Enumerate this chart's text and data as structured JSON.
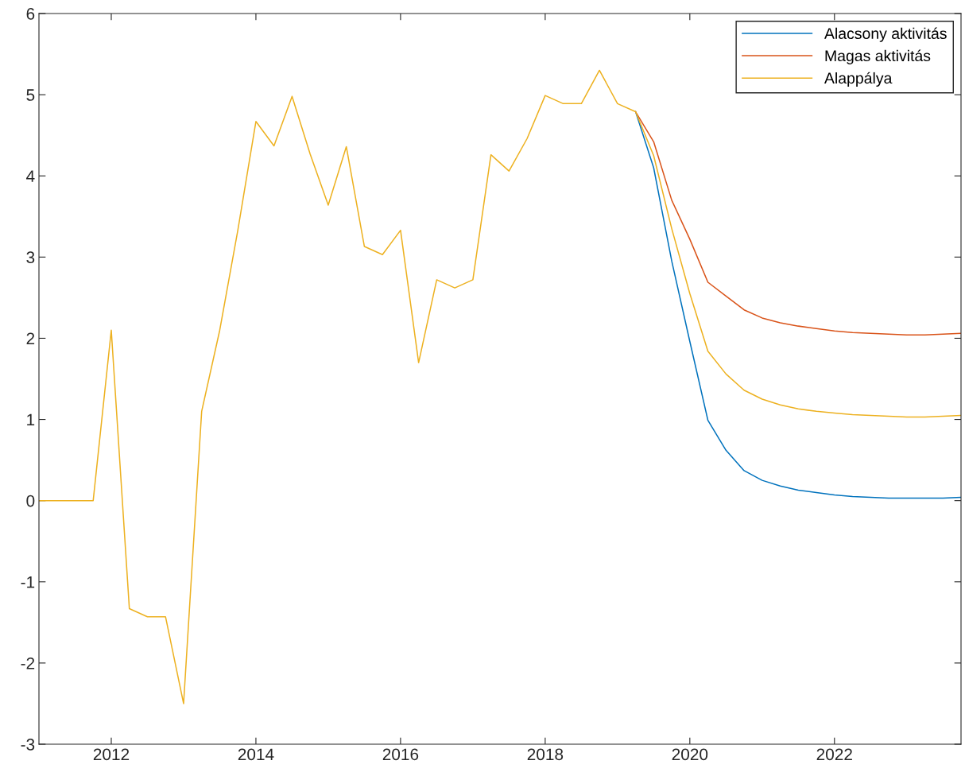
{
  "chart_data": {
    "type": "line",
    "x": [
      2011.0,
      2011.25,
      2011.5,
      2011.75,
      2012.0,
      2012.25,
      2012.5,
      2012.75,
      2013.0,
      2013.25,
      2013.5,
      2013.75,
      2014.0,
      2014.25,
      2014.5,
      2014.75,
      2015.0,
      2015.25,
      2015.5,
      2015.75,
      2016.0,
      2016.25,
      2016.5,
      2016.75,
      2017.0,
      2017.25,
      2017.5,
      2017.75,
      2018.0,
      2018.25,
      2018.5,
      2018.75,
      2019.0,
      2019.25,
      2019.5,
      2019.75,
      2020.0,
      2020.25,
      2020.5,
      2020.75,
      2021.0,
      2021.25,
      2021.5,
      2021.75,
      2022.0,
      2022.25,
      2022.5,
      2022.75,
      2023.0,
      2023.25,
      2023.5,
      2023.75
    ],
    "series": [
      {
        "name": "Alacsony aktivitás",
        "color": "#0072bd",
        "values": [
          null,
          null,
          null,
          null,
          null,
          null,
          null,
          null,
          null,
          null,
          null,
          null,
          null,
          null,
          null,
          null,
          null,
          null,
          null,
          null,
          null,
          null,
          null,
          null,
          null,
          null,
          null,
          null,
          null,
          null,
          null,
          null,
          null,
          4.79,
          4.1,
          2.95,
          1.96,
          0.99,
          0.62,
          0.37,
          0.25,
          0.18,
          0.13,
          0.1,
          0.07,
          0.05,
          0.04,
          0.03,
          0.03,
          0.03,
          0.03,
          0.04
        ]
      },
      {
        "name": "Magas aktivitás",
        "color": "#d95319",
        "values": [
          null,
          null,
          null,
          null,
          null,
          null,
          null,
          null,
          null,
          null,
          null,
          null,
          null,
          null,
          null,
          null,
          null,
          null,
          null,
          null,
          null,
          null,
          null,
          null,
          null,
          null,
          null,
          null,
          null,
          null,
          null,
          null,
          null,
          4.79,
          4.42,
          3.7,
          3.22,
          2.69,
          2.52,
          2.35,
          2.25,
          2.19,
          2.15,
          2.12,
          2.09,
          2.07,
          2.06,
          2.05,
          2.04,
          2.04,
          2.05,
          2.06
        ]
      },
      {
        "name": "Alappálya",
        "color": "#edb120",
        "values": [
          0,
          0,
          0,
          0,
          2.1,
          -1.33,
          -1.43,
          -1.43,
          -2.5,
          1.1,
          2.1,
          3.33,
          4.67,
          4.37,
          4.98,
          4.27,
          3.64,
          4.36,
          3.13,
          3.03,
          3.33,
          1.7,
          2.72,
          2.62,
          2.72,
          4.26,
          4.06,
          4.46,
          4.99,
          4.89,
          4.89,
          5.3,
          4.89,
          4.79,
          4.25,
          3.35,
          2.55,
          1.84,
          1.56,
          1.36,
          1.25,
          1.18,
          1.13,
          1.1,
          1.08,
          1.06,
          1.05,
          1.04,
          1.03,
          1.03,
          1.04,
          1.05
        ]
      }
    ],
    "xlim": [
      2011,
      2023.75
    ],
    "xticks": [
      2012,
      2014,
      2016,
      2018,
      2020,
      2022
    ],
    "ylim": [
      -3,
      6
    ],
    "yticks": [
      -3,
      -2,
      -1,
      0,
      1,
      2,
      3,
      4,
      5,
      6
    ],
    "grid": false,
    "legend": "top right",
    "marker": "none",
    "line_style": "solid"
  }
}
